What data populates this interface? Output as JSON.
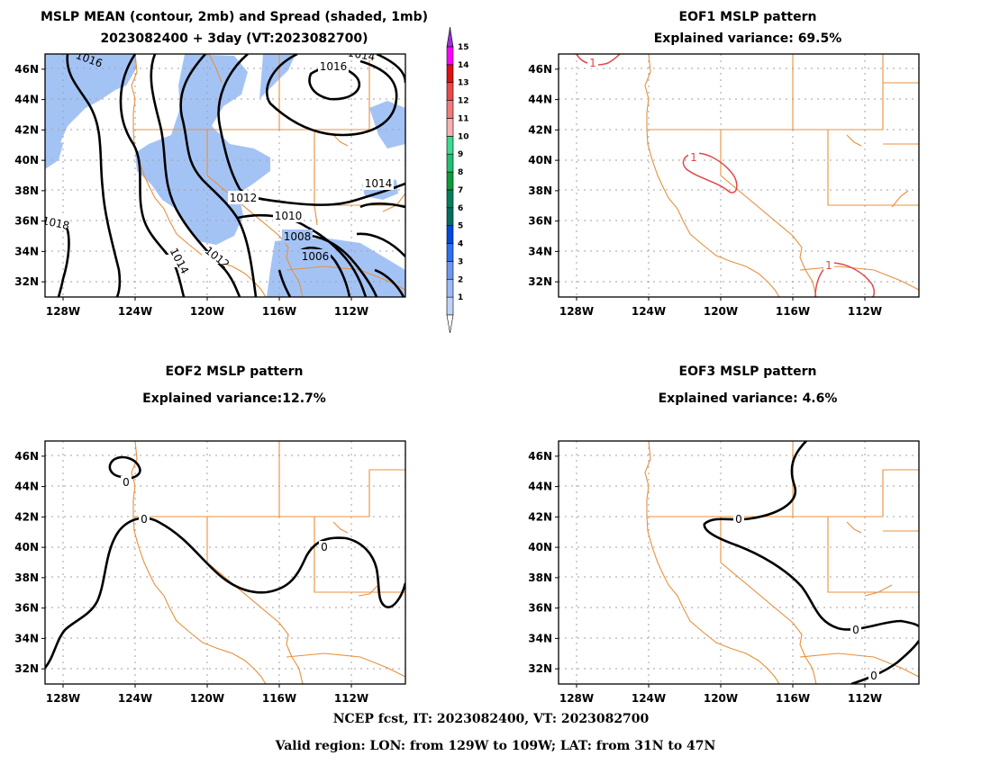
{
  "figure_title_lines": [
    "MSLP MEAN (contour, 2mb) and Spread (shaded, 1mb)",
    "2023082400 + 3day (VT:2023082700)"
  ],
  "footer": {
    "line1": "NCEP fcst, IT: 2023082400, VT: 2023082700",
    "line2": "Valid region: LON: from 129W to 109W; LAT: from 31N to 47N"
  },
  "colors": {
    "coast": "#e8903c",
    "spread_fill": "#a4c3f5",
    "contour": "#000000",
    "eof1_contour": "#e0484a",
    "grid": "#a0a0a0"
  },
  "colorbar": {
    "labels": [
      "1",
      "2",
      "3",
      "4",
      "5",
      "6",
      "7",
      "8",
      "9",
      "10",
      "11",
      "12",
      "13",
      "14",
      "15"
    ],
    "colors": [
      "#bfd3f7",
      "#9cbaf5",
      "#6e97f2",
      "#2f6ff0",
      "#0049d9",
      "#007060",
      "#00805a",
      "#0b9a3a",
      "#1ec070",
      "#3fd890",
      "#f7b0b0",
      "#f07c7c",
      "#ea4a4a",
      "#e01010",
      "#ff00ff",
      "#9b30d9"
    ]
  },
  "chart_data": [
    {
      "type": "contour",
      "title": "MSLP MEAN (contour, 2mb) and Spread (shaded, 1mb)",
      "subtitle": "2023082400 + 3day (VT:2023082700)",
      "x_range": [
        -129,
        -109
      ],
      "y_range": [
        31,
        47
      ],
      "x_ticks": [
        -128,
        -124,
        -120,
        -116,
        -112
      ],
      "x_tick_labels": [
        "128W",
        "124W",
        "120W",
        "116W",
        "112W"
      ],
      "y_ticks": [
        32,
        34,
        36,
        38,
        40,
        42,
        44,
        46
      ],
      "y_tick_labels": [
        "32N",
        "34N",
        "36N",
        "38N",
        "40N",
        "42N",
        "44N",
        "46N"
      ],
      "grid": true,
      "contour_interval_mb": 2,
      "shading_interval_mb": 1,
      "contour_labels": [
        {
          "value": "1016",
          "lon": -126.5,
          "lat": 46.4
        },
        {
          "value": "1016",
          "lon": -114.4,
          "lat": 47.0
        },
        {
          "value": "1014",
          "lon": -109.5,
          "lat": 47.0
        },
        {
          "value": "1014",
          "lon": -110.8,
          "lat": 38.5
        },
        {
          "value": "1012",
          "lon": -118.9,
          "lat": 37.5
        },
        {
          "value": "1010",
          "lon": -115.5,
          "lat": 36.3
        },
        {
          "value": "1008",
          "lon": -114.4,
          "lat": 35.1
        },
        {
          "value": "1006",
          "lon": -113.2,
          "lat": 33.8
        },
        {
          "value": "1018",
          "lon": -128.4,
          "lat": 36.0
        },
        {
          "value": "1014",
          "lon": -124.3,
          "lat": 33.3
        },
        {
          "value": "1012",
          "lon": -121.5,
          "lat": 33.7
        }
      ]
    },
    {
      "type": "contour",
      "title": "EOF1 MSLP pattern",
      "subtitle": "Explained variance: 69.5%",
      "explained_variance_pct": 69.5,
      "x_range": [
        -129,
        -109
      ],
      "y_range": [
        31,
        47
      ],
      "x_tick_labels": [
        "128W",
        "124W",
        "120W",
        "116W",
        "112W"
      ],
      "y_tick_labels": [
        "32N",
        "34N",
        "36N",
        "38N",
        "40N",
        "42N",
        "44N",
        "46N"
      ],
      "grid": true,
      "contour_labels": [
        {
          "value": "1",
          "lon": -127.0,
          "lat": 46.4
        },
        {
          "value": "1",
          "lon": -120.2,
          "lat": 39.8
        },
        {
          "value": "1",
          "lon": -113.3,
          "lat": 32.2
        }
      ]
    },
    {
      "type": "contour",
      "title": "EOF2 MSLP pattern",
      "subtitle": "Explained variance:12.7%",
      "explained_variance_pct": 12.7,
      "x_range": [
        -129,
        -109
      ],
      "y_range": [
        31,
        47
      ],
      "x_tick_labels": [
        "128W",
        "124W",
        "120W",
        "116W",
        "112W"
      ],
      "y_tick_labels": [
        "32N",
        "34N",
        "36N",
        "38N",
        "40N",
        "42N",
        "44N",
        "46N"
      ],
      "grid": true,
      "contour_labels": [
        {
          "value": "0",
          "lon": -124.5,
          "lat": 44.5
        },
        {
          "value": "0",
          "lon": -123.5,
          "lat": 41.9
        },
        {
          "value": "0",
          "lon": -113.5,
          "lat": 40.0
        }
      ]
    },
    {
      "type": "contour",
      "title": "EOF3 MSLP pattern",
      "subtitle": "Explained variance: 4.6%",
      "explained_variance_pct": 4.6,
      "x_range": [
        -129,
        -109
      ],
      "y_range": [
        31,
        47
      ],
      "x_tick_labels": [
        "128W",
        "124W",
        "120W",
        "116W",
        "112W"
      ],
      "y_tick_labels": [
        "32N",
        "34N",
        "36N",
        "38N",
        "40N",
        "42N",
        "44N",
        "46N"
      ],
      "grid": true,
      "contour_labels": [
        {
          "value": "0",
          "lon": -119.0,
          "lat": 41.9
        },
        {
          "value": "0",
          "lon": -114.0,
          "lat": 34.5
        },
        {
          "value": "0",
          "lon": -111.9,
          "lat": 31.6
        }
      ]
    }
  ]
}
